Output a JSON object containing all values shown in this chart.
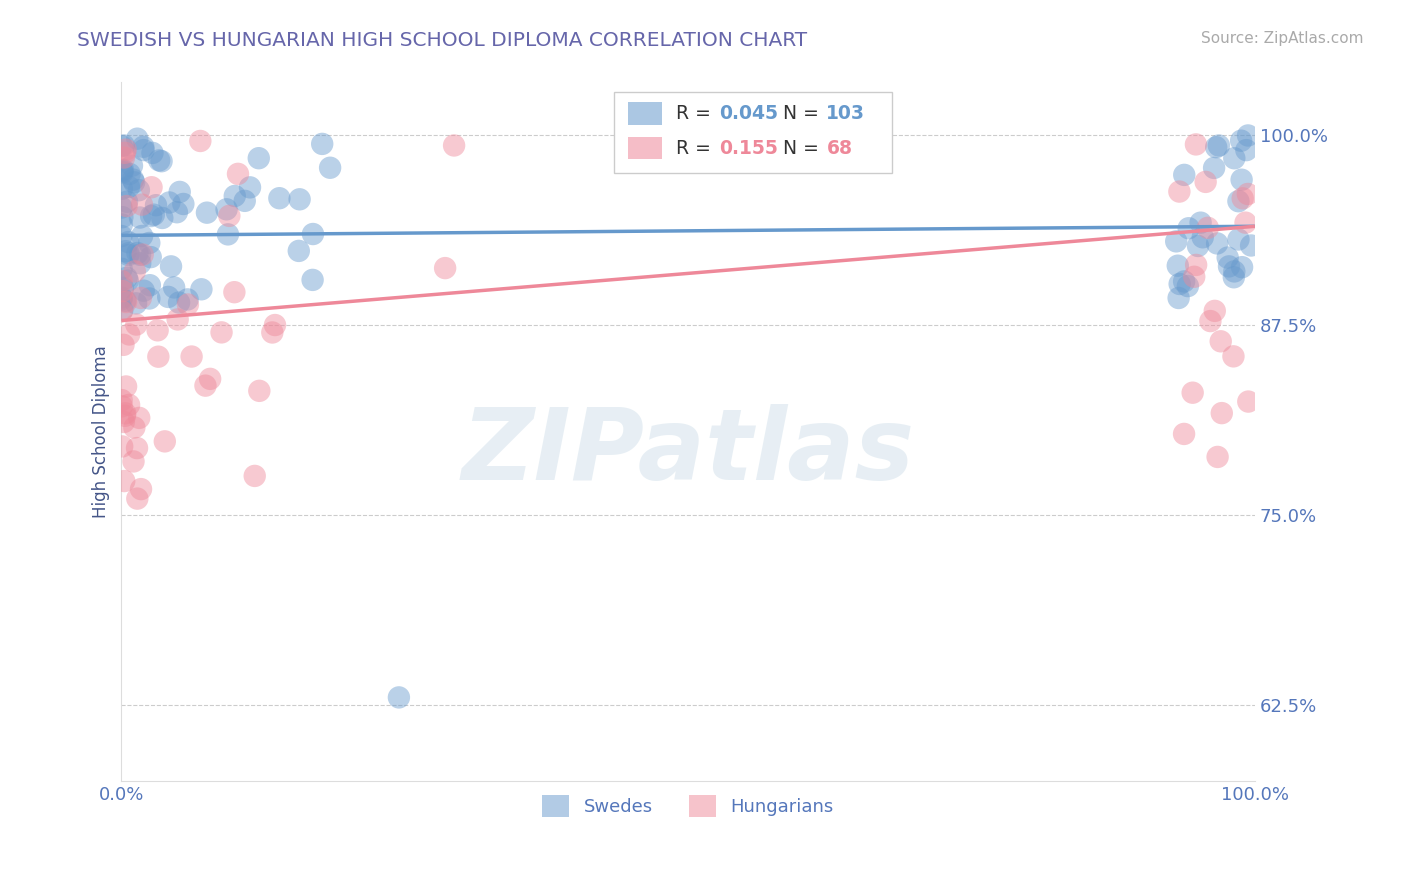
{
  "title": "SWEDISH VS HUNGARIAN HIGH SCHOOL DIPLOMA CORRELATION CHART",
  "source": "Source: ZipAtlas.com",
  "ylabel": "High School Diploma",
  "xlim": [
    0.0,
    1.0
  ],
  "ylim": [
    0.575,
    1.035
  ],
  "yticks": [
    0.625,
    0.75,
    0.875,
    1.0
  ],
  "ytick_labels": [
    "62.5%",
    "75.0%",
    "87.5%",
    "100.0%"
  ],
  "xticks": [
    0.0,
    1.0
  ],
  "xtick_labels": [
    "0.0%",
    "100.0%"
  ],
  "title_color": "#6666aa",
  "source_color": "#aaaaaa",
  "blue_color": "#6699cc",
  "pink_color": "#ee8899",
  "blue_R": 0.045,
  "blue_N": 103,
  "pink_R": 0.155,
  "pink_N": 68,
  "axis_tick_color": "#5577bb",
  "ylabel_color": "#445588",
  "grid_color": "#cccccc",
  "watermark": "ZIPatlas",
  "blue_line_y0": 0.934,
  "blue_line_y1": 0.94,
  "pink_line_y0": 0.878,
  "pink_line_y1": 0.94
}
